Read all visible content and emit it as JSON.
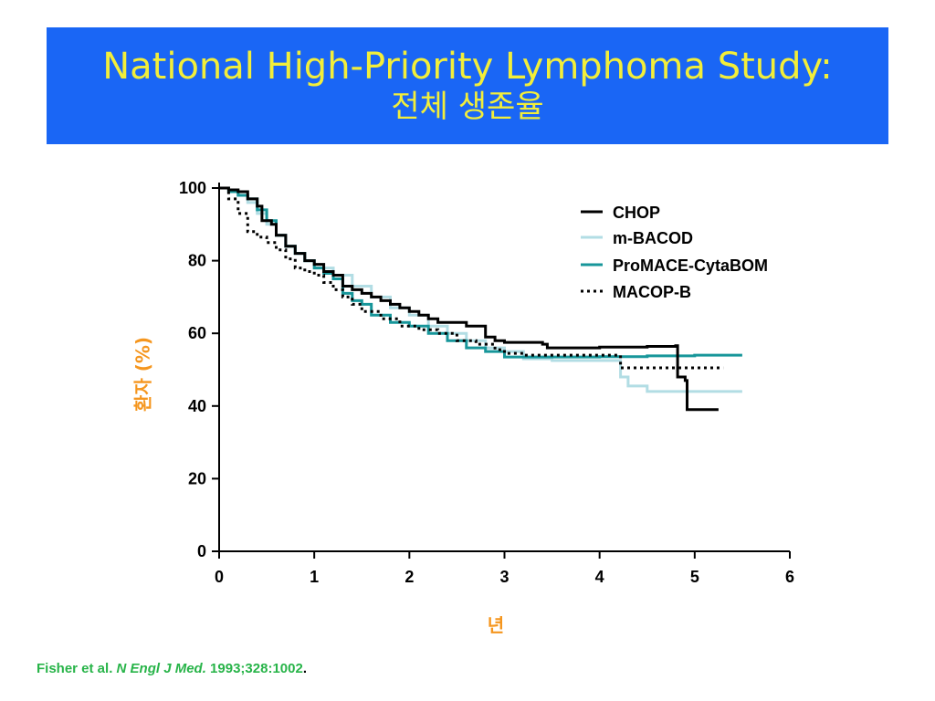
{
  "title": {
    "line1": "National High-Priority Lymphoma Study:",
    "line2": "전체 생존율"
  },
  "colors": {
    "banner_bg": "#1a66f5",
    "title_text": "#f2ee3a",
    "axis_label": "#f5961e",
    "footer_text": "#28b449"
  },
  "footer": {
    "author": "Fisher et al. ",
    "journal": "N Engl J Med.",
    "citation": " 1993;328:1002",
    "period": "."
  },
  "chart_data": {
    "type": "line",
    "xlabel": "년",
    "ylabel": "환자 (%)",
    "xlim": [
      0,
      6
    ],
    "ylim": [
      0,
      100
    ],
    "x_ticks": [
      "0",
      "1",
      "2",
      "3",
      "4",
      "5",
      "6"
    ],
    "y_ticks": [
      "0",
      "20",
      "40",
      "60",
      "80",
      "100"
    ],
    "legend_position": "top-right",
    "grid": false,
    "series": [
      {
        "name": "CHOP",
        "color": "#000000",
        "dash": "solid",
        "points": [
          [
            0,
            100
          ],
          [
            0.1,
            99.5
          ],
          [
            0.2,
            99
          ],
          [
            0.3,
            97
          ],
          [
            0.4,
            95
          ],
          [
            0.45,
            91
          ],
          [
            0.55,
            90
          ],
          [
            0.6,
            87
          ],
          [
            0.7,
            84
          ],
          [
            0.8,
            82
          ],
          [
            0.9,
            80
          ],
          [
            1.0,
            79
          ],
          [
            1.1,
            77
          ],
          [
            1.2,
            76
          ],
          [
            1.3,
            73
          ],
          [
            1.4,
            72
          ],
          [
            1.5,
            71
          ],
          [
            1.6,
            70
          ],
          [
            1.7,
            69
          ],
          [
            1.8,
            68
          ],
          [
            1.9,
            67
          ],
          [
            2.0,
            66
          ],
          [
            2.1,
            65
          ],
          [
            2.2,
            64
          ],
          [
            2.3,
            63
          ],
          [
            2.6,
            62
          ],
          [
            2.8,
            59
          ],
          [
            2.9,
            58
          ],
          [
            3.0,
            57.5
          ],
          [
            3.4,
            57
          ],
          [
            3.45,
            56
          ],
          [
            4.0,
            56.2
          ],
          [
            4.5,
            56.4
          ],
          [
            4.8,
            56.6
          ],
          [
            4.82,
            48
          ],
          [
            4.9,
            47
          ],
          [
            4.92,
            39
          ],
          [
            5.25,
            39
          ]
        ]
      },
      {
        "name": "m-BACOD",
        "color": "#b2dde4",
        "dash": "solid",
        "points": [
          [
            0,
            100
          ],
          [
            0.1,
            99
          ],
          [
            0.2,
            98
          ],
          [
            0.3,
            96
          ],
          [
            0.4,
            93
          ],
          [
            0.5,
            90
          ],
          [
            0.6,
            87
          ],
          [
            0.7,
            84
          ],
          [
            0.8,
            82
          ],
          [
            0.9,
            80
          ],
          [
            1.0,
            78
          ],
          [
            1.2,
            76
          ],
          [
            1.4,
            73
          ],
          [
            1.6,
            70
          ],
          [
            1.8,
            67
          ],
          [
            2.0,
            65
          ],
          [
            2.2,
            62
          ],
          [
            2.4,
            60
          ],
          [
            2.6,
            58
          ],
          [
            2.8,
            56
          ],
          [
            3.0,
            55
          ],
          [
            3.2,
            53
          ],
          [
            3.5,
            52.5
          ],
          [
            4.2,
            52.5
          ],
          [
            4.22,
            48
          ],
          [
            4.3,
            45.5
          ],
          [
            4.5,
            44
          ],
          [
            5.5,
            44
          ]
        ]
      },
      {
        "name": "ProMACE-CytaBOM",
        "color": "#17969a",
        "dash": "solid",
        "points": [
          [
            0,
            100
          ],
          [
            0.1,
            99
          ],
          [
            0.2,
            98
          ],
          [
            0.3,
            97
          ],
          [
            0.4,
            94
          ],
          [
            0.5,
            91
          ],
          [
            0.6,
            87
          ],
          [
            0.7,
            84
          ],
          [
            0.8,
            82
          ],
          [
            0.9,
            80
          ],
          [
            1.0,
            78
          ],
          [
            1.1,
            76.5
          ],
          [
            1.2,
            75
          ],
          [
            1.3,
            71
          ],
          [
            1.4,
            69
          ],
          [
            1.5,
            68
          ],
          [
            1.6,
            65
          ],
          [
            1.8,
            63
          ],
          [
            2.0,
            62
          ],
          [
            2.2,
            60
          ],
          [
            2.4,
            58
          ],
          [
            2.6,
            56
          ],
          [
            2.8,
            55
          ],
          [
            3.0,
            53.5
          ],
          [
            3.5,
            53.5
          ],
          [
            4.0,
            53.6
          ],
          [
            4.5,
            53.8
          ],
          [
            5.0,
            54
          ],
          [
            5.5,
            54
          ]
        ]
      },
      {
        "name": "MACOP-B",
        "color": "#000000",
        "dash": "dotted",
        "points": [
          [
            0,
            100
          ],
          [
            0.1,
            97
          ],
          [
            0.2,
            93
          ],
          [
            0.3,
            88
          ],
          [
            0.4,
            86.5
          ],
          [
            0.5,
            85
          ],
          [
            0.6,
            83
          ],
          [
            0.7,
            80.5
          ],
          [
            0.8,
            78
          ],
          [
            0.9,
            77
          ],
          [
            1.0,
            76
          ],
          [
            1.1,
            74
          ],
          [
            1.2,
            72
          ],
          [
            1.3,
            70
          ],
          [
            1.4,
            68
          ],
          [
            1.5,
            66
          ],
          [
            1.7,
            64
          ],
          [
            1.9,
            62
          ],
          [
            2.1,
            61
          ],
          [
            2.3,
            60
          ],
          [
            2.5,
            58
          ],
          [
            2.7,
            57
          ],
          [
            2.9,
            55.5
          ],
          [
            3.0,
            54.5
          ],
          [
            3.2,
            54
          ],
          [
            4.0,
            54
          ],
          [
            4.2,
            54
          ],
          [
            4.22,
            50.5
          ],
          [
            4.8,
            50.5
          ],
          [
            5.3,
            50.5
          ]
        ]
      }
    ]
  }
}
